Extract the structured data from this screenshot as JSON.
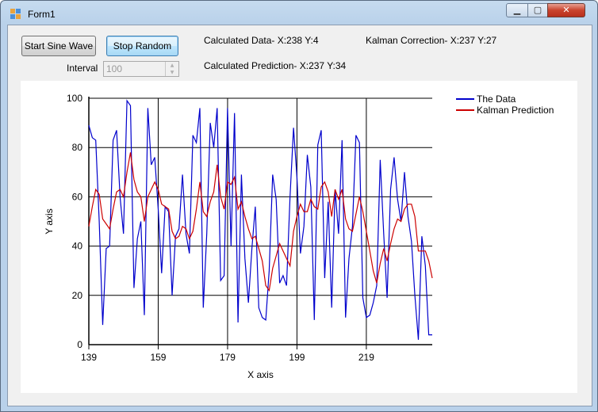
{
  "window": {
    "title": "Form1",
    "min_glyph": "▁",
    "max_glyph": "▢",
    "close_glyph": "✕"
  },
  "controls": {
    "start_button": "Start Sine Wave",
    "stop_button": "Stop Random",
    "interval_label": "Interval",
    "interval_value": "100",
    "calculated_data": "Calculated Data- X:238 Y:4",
    "calculated_prediction": "Calculated Prediction- X:237 Y:34",
    "kalman_correction": "Kalman Correction- X:237 Y:27"
  },
  "chart_data": {
    "type": "line",
    "xlabel": "X axis",
    "ylabel": "Y axis",
    "xlim": [
      139,
      238
    ],
    "ylim": [
      0,
      100
    ],
    "xticks": [
      139,
      159,
      179,
      199,
      219
    ],
    "yticks": [
      0,
      20,
      40,
      60,
      80,
      100
    ],
    "grid": true,
    "legend_position": "top-right",
    "series": [
      {
        "name": "The Data",
        "color": "#0000cc",
        "x": [
          139,
          140,
          141,
          142,
          143,
          144,
          145,
          146,
          147,
          148,
          149,
          150,
          151,
          152,
          153,
          154,
          155,
          156,
          157,
          158,
          159,
          160,
          161,
          162,
          163,
          164,
          165,
          166,
          167,
          168,
          169,
          170,
          171,
          172,
          173,
          174,
          175,
          176,
          177,
          178,
          179,
          180,
          181,
          182,
          183,
          184,
          185,
          186,
          187,
          188,
          189,
          190,
          191,
          192,
          193,
          194,
          195,
          196,
          197,
          198,
          199,
          200,
          201,
          202,
          203,
          204,
          205,
          206,
          207,
          208,
          209,
          210,
          211,
          212,
          213,
          214,
          215,
          216,
          217,
          218,
          219,
          220,
          221,
          222,
          223,
          224,
          225,
          226,
          227,
          228,
          229,
          230,
          231,
          232,
          233,
          234,
          235,
          236,
          237,
          238
        ],
        "values": [
          89,
          84,
          83,
          50,
          8,
          39,
          40,
          83,
          87,
          60,
          45,
          99,
          97,
          23,
          43,
          50,
          12,
          96,
          73,
          76,
          55,
          29,
          56,
          54,
          20,
          44,
          47,
          69,
          45,
          37,
          85,
          82,
          96,
          15,
          45,
          90,
          80,
          96,
          26,
          28,
          96,
          40,
          94,
          9,
          69,
          35,
          17,
          39,
          56,
          15,
          11,
          10,
          30,
          69,
          59,
          25,
          28,
          24,
          60,
          88,
          68,
          37,
          48,
          77,
          64,
          10,
          81,
          87,
          27,
          58,
          15,
          63,
          45,
          83,
          11,
          35,
          48,
          85,
          82,
          19,
          11,
          12,
          17,
          24,
          75,
          45,
          19,
          63,
          76,
          59,
          50,
          70,
          52,
          42,
          20,
          2,
          44,
          32,
          4,
          4
        ]
      },
      {
        "name": "Kalman Prediction",
        "color": "#cc0000",
        "x": [
          139,
          140,
          141,
          142,
          143,
          144,
          145,
          146,
          147,
          148,
          149,
          150,
          151,
          152,
          153,
          154,
          155,
          156,
          157,
          158,
          159,
          160,
          161,
          162,
          163,
          164,
          165,
          166,
          167,
          168,
          169,
          170,
          171,
          172,
          173,
          174,
          175,
          176,
          177,
          178,
          179,
          180,
          181,
          182,
          183,
          184,
          185,
          186,
          187,
          188,
          189,
          190,
          191,
          192,
          193,
          194,
          195,
          196,
          197,
          198,
          199,
          200,
          201,
          202,
          203,
          204,
          205,
          206,
          207,
          208,
          209,
          210,
          211,
          212,
          213,
          214,
          215,
          216,
          217,
          218,
          219,
          220,
          221,
          222,
          223,
          224,
          225,
          226,
          227,
          228,
          229,
          230,
          231,
          232,
          233,
          234,
          235,
          236,
          237,
          238
        ],
        "values": [
          48,
          56,
          63,
          61,
          51,
          49,
          47,
          55,
          62,
          63,
          60,
          70,
          78,
          67,
          62,
          60,
          50,
          60,
          63,
          66,
          63,
          57,
          56,
          55,
          46,
          43,
          44,
          48,
          47,
          43,
          46,
          55,
          66,
          54,
          52,
          58,
          62,
          73,
          60,
          55,
          66,
          65,
          68,
          55,
          58,
          52,
          47,
          43,
          44,
          39,
          34,
          24,
          22,
          31,
          36,
          41,
          38,
          35,
          32,
          46,
          52,
          57,
          54,
          54,
          59,
          56,
          55,
          64,
          66,
          62,
          52,
          63,
          59,
          63,
          51,
          47,
          46,
          53,
          60,
          54,
          46,
          38,
          30,
          25,
          33,
          39,
          34,
          41,
          47,
          51,
          50,
          55,
          57,
          57,
          52,
          38,
          38,
          38,
          34,
          27
        ]
      }
    ]
  }
}
